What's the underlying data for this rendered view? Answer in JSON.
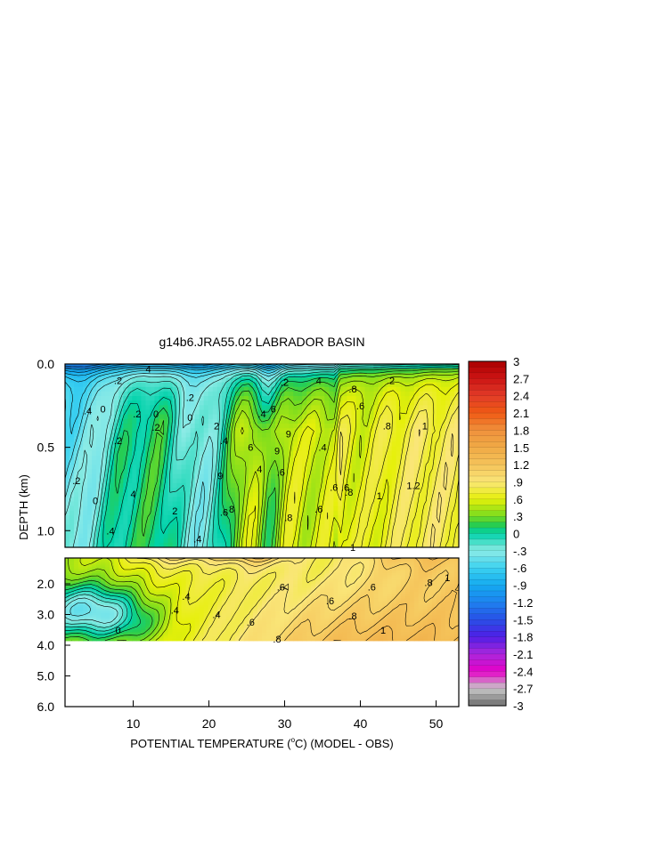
{
  "chart_data": {
    "type": "heatmap",
    "title": "g14b6.JRA55.02 LABRADOR BASIN",
    "xlabel_prefix": "POTENTIAL TEMPERATURE (",
    "xlabel_unit_sup": "o",
    "xlabel_suffix": "C) (MODEL - OBS)",
    "ylabel": "DEPTH (km)",
    "x_range": [
      1,
      53
    ],
    "x_ticks": [
      "10",
      "20",
      "30",
      "40",
      "50"
    ],
    "x_tick_values": [
      10,
      20,
      30,
      40,
      50
    ],
    "upper_panel": {
      "depth_range_km": [
        0.0,
        1.1
      ],
      "y_ticks": [
        "0.0",
        "0.5",
        "1.0"
      ],
      "y_tick_values": [
        0.0,
        0.5,
        1.0
      ]
    },
    "lower_panel": {
      "depth_range_km": [
        1.1,
        6.0
      ],
      "y_ticks": [
        "2.0",
        "3.0",
        "4.0",
        "5.0",
        "6.0"
      ],
      "y_tick_values": [
        2.0,
        3.0,
        4.0,
        5.0,
        6.0
      ],
      "data_bottom_km": 3.85
    },
    "colorbar": {
      "labels": [
        "3",
        "2.7",
        "2.4",
        "2.1",
        "1.8",
        "1.5",
        "1.2",
        ".9",
        ".6",
        ".3",
        "0",
        "-.3",
        "-.6",
        "-.9",
        "-1.2",
        "-1.5",
        "-1.8",
        "-2.1",
        "-2.4",
        "-2.7",
        "-3"
      ],
      "values": [
        3,
        2.7,
        2.4,
        2.1,
        1.8,
        1.5,
        1.2,
        0.9,
        0.6,
        0.3,
        0,
        -0.3,
        -0.6,
        -0.9,
        -1.2,
        -1.5,
        -1.8,
        -2.1,
        -2.4,
        -2.7,
        -3
      ]
    },
    "contour_labels_upper": [
      {
        "text": "4",
        "x": 12,
        "d": 0.03
      },
      {
        "text": ".2",
        "x": 8,
        "d": 0.1
      },
      {
        "text": ".4",
        "x": 4,
        "d": 0.28
      },
      {
        "text": ".2",
        "x": 2.5,
        "d": 0.7
      },
      {
        "text": "0",
        "x": 6,
        "d": 0.27
      },
      {
        "text": "0",
        "x": 13,
        "d": 0.3
      },
      {
        "text": ".2",
        "x": 10.5,
        "d": 0.3
      },
      {
        "text": ".2",
        "x": 17.5,
        "d": 0.2
      },
      {
        "text": "0",
        "x": 17.5,
        "d": 0.32
      },
      {
        "text": ".2",
        "x": 13,
        "d": 0.38
      },
      {
        "text": ".2",
        "x": 8,
        "d": 0.46
      },
      {
        "text": "2",
        "x": 21,
        "d": 0.37
      },
      {
        "text": ".4",
        "x": 22,
        "d": 0.46
      },
      {
        "text": "4",
        "x": 10,
        "d": 0.78
      },
      {
        "text": "0",
        "x": 5,
        "d": 0.82
      },
      {
        "text": "2",
        "x": 15.5,
        "d": 0.88
      },
      {
        "text": ".4",
        "x": 7,
        "d": 1.0
      },
      {
        "text": ".4",
        "x": 18.5,
        "d": 1.05
      },
      {
        "text": "9",
        "x": 21.5,
        "d": 0.67
      },
      {
        "text": ".6",
        "x": 22,
        "d": 0.89
      },
      {
        "text": "8",
        "x": 23,
        "d": 0.87
      },
      {
        "text": "6",
        "x": 25.5,
        "d": 0.5
      },
      {
        "text": ".4",
        "x": 26.5,
        "d": 0.63
      },
      {
        "text": "6",
        "x": 28.5,
        "d": 0.27
      },
      {
        "text": ".4",
        "x": 27,
        "d": 0.3
      },
      {
        "text": "9",
        "x": 29,
        "d": 0.52
      },
      {
        "text": "9",
        "x": 30.5,
        "d": 0.42
      },
      {
        "text": ".6",
        "x": 29.5,
        "d": 0.65
      },
      {
        "text": ".8",
        "x": 30.5,
        "d": 0.92
      },
      {
        "text": ".6",
        "x": 34.5,
        "d": 0.87
      },
      {
        "text": ".6",
        "x": 36.5,
        "d": 0.74
      },
      {
        "text": ".4",
        "x": 35,
        "d": 0.5
      },
      {
        "text": ".2",
        "x": 30,
        "d": 0.11
      },
      {
        "text": "4",
        "x": 34.5,
        "d": 0.1
      },
      {
        "text": ".6",
        "x": 38,
        "d": 0.74
      },
      {
        "text": ".8",
        "x": 39,
        "d": 0.15
      },
      {
        "text": ".6",
        "x": 40,
        "d": 0.25
      },
      {
        "text": ".8",
        "x": 38.5,
        "d": 0.77
      },
      {
        "text": ".8",
        "x": 43.5,
        "d": 0.37
      },
      {
        "text": "1",
        "x": 48.5,
        "d": 0.37
      },
      {
        "text": ".2",
        "x": 44,
        "d": 0.1
      },
      {
        "text": "1",
        "x": 42.5,
        "d": 0.79
      },
      {
        "text": "1.2",
        "x": 47,
        "d": 0.73
      },
      {
        "text": "1",
        "x": 39,
        "d": 1.1
      }
    ],
    "contour_labels_lower": [
      {
        "text": ".4",
        "x": 17,
        "d": 2.4
      },
      {
        "text": ".4",
        "x": 15.5,
        "d": 2.85
      },
      {
        "text": ".4",
        "x": 21,
        "d": 3.0
      },
      {
        "text": "0",
        "x": 8,
        "d": 3.5
      },
      {
        "text": ".6",
        "x": 29.5,
        "d": 2.1
      },
      {
        "text": ".6",
        "x": 41.5,
        "d": 2.1
      },
      {
        "text": ".6",
        "x": 36,
        "d": 2.55
      },
      {
        "text": ".8",
        "x": 49,
        "d": 1.95
      },
      {
        "text": "1",
        "x": 51.5,
        "d": 1.8
      },
      {
        "text": ".8",
        "x": 39,
        "d": 3.05
      },
      {
        "text": "1",
        "x": 43,
        "d": 3.5
      },
      {
        "text": ".6",
        "x": 25.5,
        "d": 3.25
      },
      {
        "text": ".8",
        "x": 29,
        "d": 3.8
      }
    ]
  }
}
